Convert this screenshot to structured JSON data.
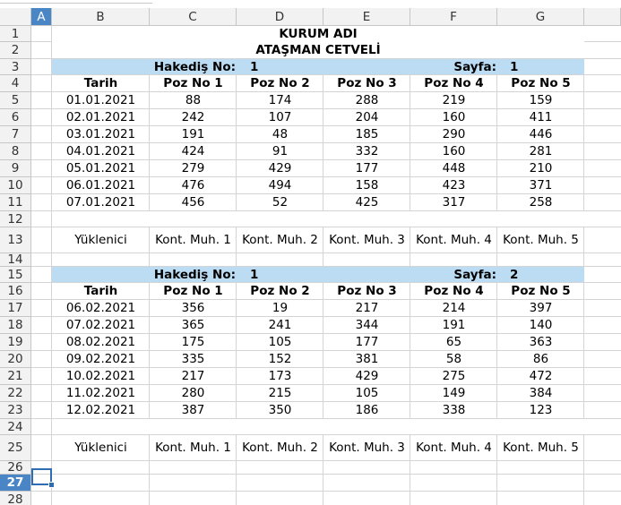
{
  "columns": [
    "A",
    "B",
    "C",
    "D",
    "E",
    "F",
    "G"
  ],
  "rows": [
    "1",
    "2",
    "3",
    "4",
    "5",
    "6",
    "7",
    "8",
    "9",
    "10",
    "11",
    "12",
    "13",
    "14",
    "15",
    "16",
    "17",
    "18",
    "19",
    "20",
    "21",
    "22",
    "23",
    "24",
    "25",
    "26",
    "27",
    "28"
  ],
  "selected_cell": "A27",
  "title": "KURUM ADI",
  "subtitle": "ATAŞMAN CETVELİ",
  "sections": [
    {
      "hakedis_label": "Hakediş No:",
      "hakedis_no": "1",
      "sayfa_label": "Sayfa:",
      "sayfa_no": "1",
      "date_header": "Tarih",
      "poz_headers": [
        "Poz No 1",
        "Poz No 2",
        "Poz No 3",
        "Poz No 4",
        "Poz No 5"
      ],
      "rows": [
        {
          "date": "01.01.2021",
          "values": [
            "88",
            "174",
            "288",
            "219",
            "159"
          ]
        },
        {
          "date": "02.01.2021",
          "values": [
            "242",
            "107",
            "204",
            "160",
            "411"
          ]
        },
        {
          "date": "03.01.2021",
          "values": [
            "191",
            "48",
            "185",
            "290",
            "446"
          ]
        },
        {
          "date": "04.01.2021",
          "values": [
            "424",
            "91",
            "332",
            "160",
            "281"
          ]
        },
        {
          "date": "05.01.2021",
          "values": [
            "279",
            "429",
            "177",
            "448",
            "210"
          ]
        },
        {
          "date": "06.01.2021",
          "values": [
            "476",
            "494",
            "158",
            "423",
            "371"
          ]
        },
        {
          "date": "07.01.2021",
          "values": [
            "456",
            "52",
            "425",
            "317",
            "258"
          ]
        }
      ],
      "signatures": [
        "Yüklenici",
        "Kont. Muh. 1",
        "Kont. Muh. 2",
        "Kont. Muh. 3",
        "Kont. Muh. 4",
        "Kont. Muh. 5"
      ]
    },
    {
      "hakedis_label": "Hakediş No:",
      "hakedis_no": "1",
      "sayfa_label": "Sayfa:",
      "sayfa_no": "2",
      "date_header": "Tarih",
      "poz_headers": [
        "Poz No 1",
        "Poz No 2",
        "Poz No 3",
        "Poz No 4",
        "Poz No 5"
      ],
      "rows": [
        {
          "date": "06.02.2021",
          "values": [
            "356",
            "19",
            "217",
            "214",
            "397"
          ]
        },
        {
          "date": "07.02.2021",
          "values": [
            "365",
            "241",
            "344",
            "191",
            "140"
          ]
        },
        {
          "date": "08.02.2021",
          "values": [
            "175",
            "105",
            "177",
            "65",
            "363"
          ]
        },
        {
          "date": "09.02.2021",
          "values": [
            "335",
            "152",
            "381",
            "58",
            "86"
          ]
        },
        {
          "date": "10.02.2021",
          "values": [
            "217",
            "173",
            "429",
            "275",
            "472"
          ]
        },
        {
          "date": "11.02.2021",
          "values": [
            "280",
            "215",
            "105",
            "149",
            "384"
          ]
        },
        {
          "date": "12.02.2021",
          "values": [
            "387",
            "350",
            "186",
            "338",
            "123"
          ]
        }
      ],
      "signatures": [
        "Yüklenici",
        "Kont. Muh. 1",
        "Kont. Muh. 2",
        "Kont. Muh. 3",
        "Kont. Muh. 4",
        "Kont. Muh. 5"
      ]
    }
  ],
  "colors": {
    "header_band": "#bcdcf4",
    "selection": "#4a86c5",
    "grid": "#d4d4d4",
    "header_bg": "#f2f2f2"
  }
}
